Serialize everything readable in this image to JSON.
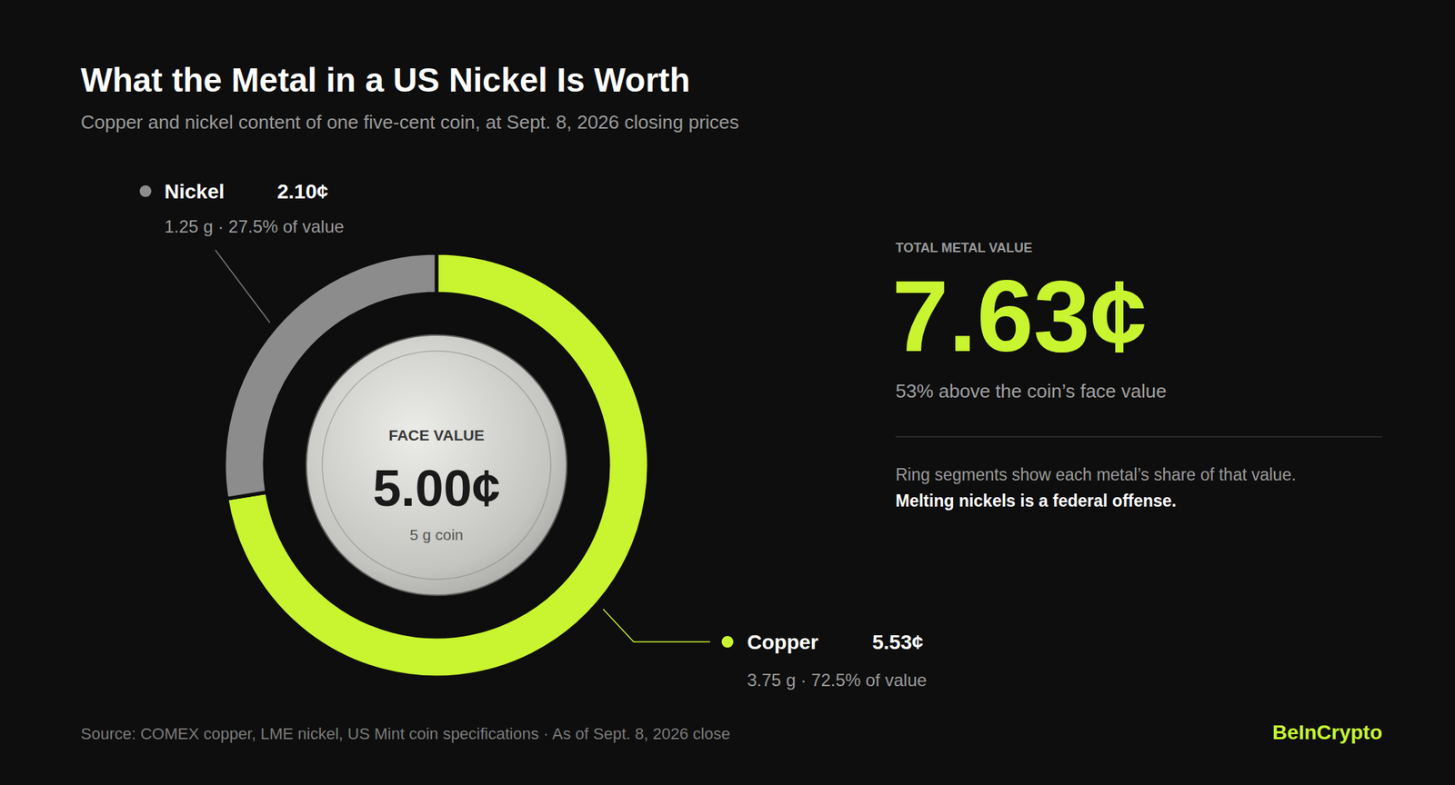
{
  "chart_data": {
    "type": "donut",
    "title": "What the Metal in a US Nickel Is Worth",
    "subtitle": "Copper and nickel content of one five-cent coin, at Sept. 8, 2026 closing prices",
    "categories": [
      "Copper",
      "Nickel"
    ],
    "values": [
      5.53,
      2.1
    ],
    "value_labels": [
      "5.53¢",
      "2.10¢"
    ],
    "colors": [
      "#c8f52f",
      "#8c8c8c"
    ],
    "details": [
      "3.75 g · 72.5% of value",
      "1.25 g · 27.5% of value"
    ],
    "data_labels": true,
    "center": {
      "label": "FACE VALUE",
      "value_label": "5.00¢",
      "note": "5 g coin"
    },
    "total": {
      "label": "TOTAL METAL VALUE",
      "value_label": "7.63¢",
      "note": "53% above the coin’s face value"
    },
    "annotations": [
      "Ring segments show each metal’s share of that value.",
      "Melting nickels is a federal offense."
    ],
    "source": "Source: COMEX copper, LME nickel, US Mint coin specifications · As of Sept. 8, 2026 close",
    "brand": "BeInCrypto"
  }
}
